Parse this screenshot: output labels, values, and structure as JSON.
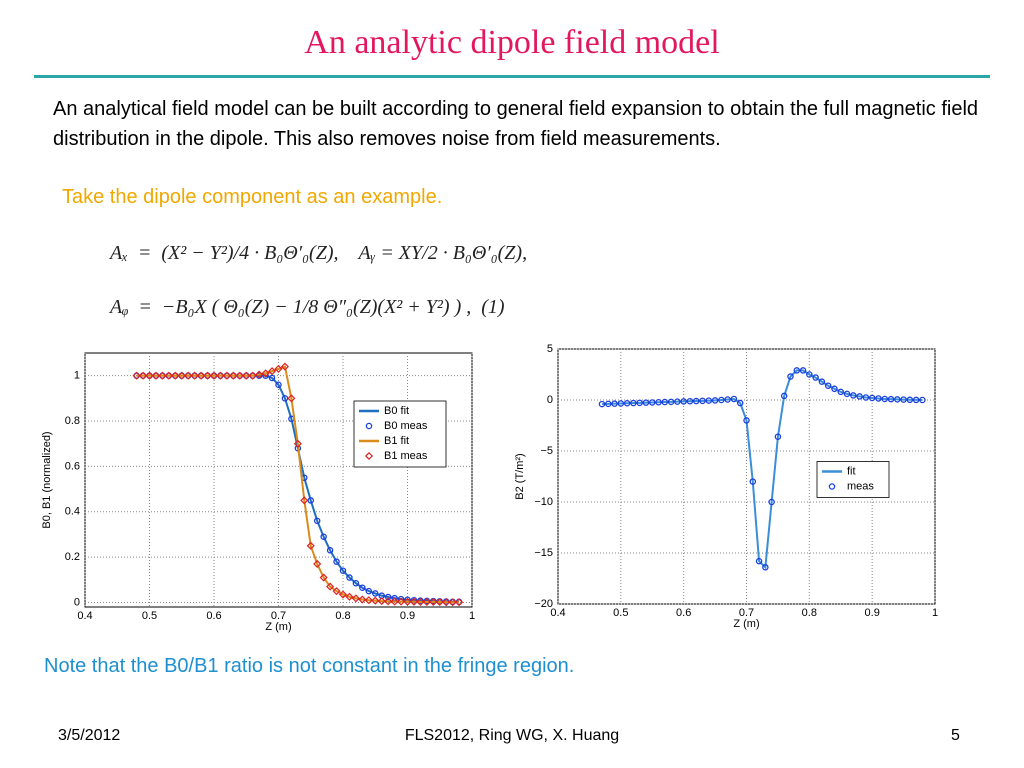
{
  "slide": {
    "title": "An analytic dipole field model",
    "paragraph": "An analytical field model can be built according to general field expansion to obtain the full magnetic field distribution in the dipole.  This also removes noise from field measurements.",
    "highlight": "Take the dipole component as an example.",
    "equations": [
      "Aₓ  =  (X² − Y²)/4 · B₀Θ′₀(Z),    Aᵧ = XY/2 · B₀Θ′₀(Z),",
      "Aᵩ  =  −B₀X ( Θ₀(Z) − 1/8 Θ″₀(Z)(X² + Y²) ) ,  (1)"
    ],
    "note": "Note that the B0/B1 ratio is not constant in the fringe region.",
    "footer_left": "3/5/2012",
    "footer_center": "FLS2012, Ring WG, X. Huang",
    "footer_right": "5"
  },
  "chart_data": [
    {
      "type": "line",
      "xlabel": "Z (m)",
      "ylabel": "B0, B1 (normalized)",
      "xlim": [
        0.4,
        1
      ],
      "ylim": [
        -0.02,
        1.1
      ],
      "xticks": [
        0.4,
        0.5,
        0.6,
        0.7,
        0.8,
        0.9,
        1
      ],
      "yticks": [
        0,
        0.2,
        0.4,
        0.6,
        0.8,
        1
      ],
      "grid": true,
      "legend": "upper right",
      "x": [
        0.48,
        0.49,
        0.5,
        0.51,
        0.52,
        0.53,
        0.54,
        0.55,
        0.56,
        0.57,
        0.58,
        0.59,
        0.6,
        0.61,
        0.62,
        0.63,
        0.64,
        0.65,
        0.66,
        0.67,
        0.68,
        0.69,
        0.7,
        0.71,
        0.72,
        0.73,
        0.74,
        0.75,
        0.76,
        0.77,
        0.78,
        0.79,
        0.8,
        0.81,
        0.82,
        0.83,
        0.84,
        0.85,
        0.86,
        0.87,
        0.88,
        0.89,
        0.9,
        0.91,
        0.92,
        0.93,
        0.94,
        0.95,
        0.96,
        0.97,
        0.98
      ],
      "series": [
        {
          "name": "B0 fit",
          "style": "line",
          "color": "#1f6fc0",
          "values": [
            1,
            1,
            1,
            1,
            1,
            1,
            1,
            1,
            1,
            1,
            1,
            1,
            1,
            1,
            1,
            1,
            1,
            1,
            1,
            1,
            1,
            0.99,
            0.96,
            0.9,
            0.81,
            0.68,
            0.55,
            0.45,
            0.36,
            0.29,
            0.23,
            0.18,
            0.14,
            0.11,
            0.085,
            0.065,
            0.05,
            0.04,
            0.03,
            0.024,
            0.019,
            0.015,
            0.012,
            0.01,
            0.008,
            0.007,
            0.006,
            0.005,
            0.004,
            0.003,
            0.003
          ]
        },
        {
          "name": "B0 meas",
          "style": "circle",
          "color": "#1a3fe0",
          "values": [
            1,
            1,
            1,
            1,
            1,
            1,
            1,
            1,
            1,
            1,
            1,
            1,
            1,
            1,
            1,
            1,
            1,
            1,
            1,
            1,
            1,
            0.99,
            0.96,
            0.9,
            0.81,
            0.68,
            0.55,
            0.45,
            0.36,
            0.29,
            0.23,
            0.18,
            0.14,
            0.11,
            0.085,
            0.065,
            0.05,
            0.04,
            0.03,
            0.024,
            0.019,
            0.015,
            0.012,
            0.01,
            0.008,
            0.007,
            0.006,
            0.005,
            0.004,
            0.003,
            0.003
          ]
        },
        {
          "name": "B1 fit",
          "style": "line",
          "color": "#d98c1a",
          "values": [
            1,
            1,
            1,
            1,
            1,
            1,
            1,
            1,
            1,
            1,
            1,
            1,
            1,
            1,
            1,
            1,
            1,
            1,
            1,
            1.005,
            1.01,
            1.02,
            1.03,
            1.04,
            0.9,
            0.7,
            0.45,
            0.25,
            0.17,
            0.11,
            0.07,
            0.05,
            0.035,
            0.025,
            0.018,
            0.013,
            0.01,
            0.008,
            0.006,
            0.005,
            0.004,
            0.004,
            0.003,
            0.003,
            0.002,
            0.002,
            0.002,
            0.002,
            0.001,
            0.001,
            0.001
          ]
        },
        {
          "name": "B1 meas",
          "style": "diamond",
          "color": "#e02020",
          "values": [
            1,
            1,
            1,
            1,
            1,
            1,
            1,
            1,
            1,
            1,
            1,
            1,
            1,
            1,
            1,
            1,
            1,
            1,
            1,
            1.005,
            1.01,
            1.02,
            1.03,
            1.04,
            0.9,
            0.7,
            0.45,
            0.25,
            0.17,
            0.11,
            0.07,
            0.05,
            0.035,
            0.025,
            0.018,
            0.013,
            0.01,
            0.008,
            0.006,
            0.005,
            0.004,
            0.004,
            0.003,
            0.003,
            0.002,
            0.002,
            0.002,
            0.002,
            0.001,
            0.001,
            0.001
          ]
        }
      ]
    },
    {
      "type": "line",
      "xlabel": "Z (m)",
      "ylabel": "B2 (T/m²)",
      "xlim": [
        0.4,
        1
      ],
      "ylim": [
        -20,
        5
      ],
      "xticks": [
        0.4,
        0.5,
        0.6,
        0.7,
        0.8,
        0.9,
        1
      ],
      "yticks": [
        5,
        0,
        {
          "value": -5,
          "label": "−5"
        },
        {
          "value": -10,
          "label": "−10"
        },
        {
          "value": -15,
          "label": "−15"
        },
        {
          "value": -20,
          "label": "−20"
        }
      ],
      "grid": true,
      "legend": "right",
      "x": [
        0.47,
        0.48,
        0.49,
        0.5,
        0.51,
        0.52,
        0.53,
        0.54,
        0.55,
        0.56,
        0.57,
        0.58,
        0.59,
        0.6,
        0.61,
        0.62,
        0.63,
        0.64,
        0.65,
        0.66,
        0.67,
        0.68,
        0.69,
        0.7,
        0.71,
        0.72,
        0.73,
        0.74,
        0.75,
        0.76,
        0.77,
        0.78,
        0.79,
        0.8,
        0.81,
        0.82,
        0.83,
        0.84,
        0.85,
        0.86,
        0.87,
        0.88,
        0.89,
        0.9,
        0.91,
        0.92,
        0.93,
        0.94,
        0.95,
        0.96,
        0.97,
        0.98
      ],
      "series": [
        {
          "name": "fit",
          "style": "line",
          "color": "#3a8fd8",
          "values": [
            -0.4,
            -0.38,
            -0.36,
            -0.34,
            -0.32,
            -0.3,
            -0.28,
            -0.26,
            -0.24,
            -0.22,
            -0.2,
            -0.18,
            -0.16,
            -0.14,
            -0.12,
            -0.1,
            -0.08,
            -0.06,
            -0.04,
            0,
            0.05,
            0.1,
            -0.3,
            -2,
            -8,
            -15.8,
            -16.4,
            -10,
            -3.6,
            0.4,
            2.3,
            2.9,
            2.9,
            2.5,
            2.2,
            1.8,
            1.4,
            1.1,
            0.8,
            0.6,
            0.45,
            0.35,
            0.25,
            0.2,
            0.15,
            0.1,
            0.08,
            0.06,
            0.04,
            0.02,
            0.01,
            0
          ]
        },
        {
          "name": "meas",
          "style": "circle",
          "color": "#1a3fe0",
          "values": [
            -0.4,
            -0.38,
            -0.36,
            -0.34,
            -0.32,
            -0.3,
            -0.28,
            -0.26,
            -0.24,
            -0.22,
            -0.2,
            -0.18,
            -0.16,
            -0.14,
            -0.12,
            -0.1,
            -0.08,
            -0.06,
            -0.04,
            0,
            0.05,
            0.1,
            -0.3,
            -2,
            -8,
            -15.8,
            -16.4,
            -10,
            -3.6,
            0.4,
            2.3,
            2.9,
            2.9,
            2.5,
            2.2,
            1.8,
            1.4,
            1.1,
            0.8,
            0.6,
            0.45,
            0.35,
            0.25,
            0.2,
            0.15,
            0.1,
            0.08,
            0.06,
            0.04,
            0.02,
            0.01,
            0
          ]
        }
      ]
    }
  ]
}
